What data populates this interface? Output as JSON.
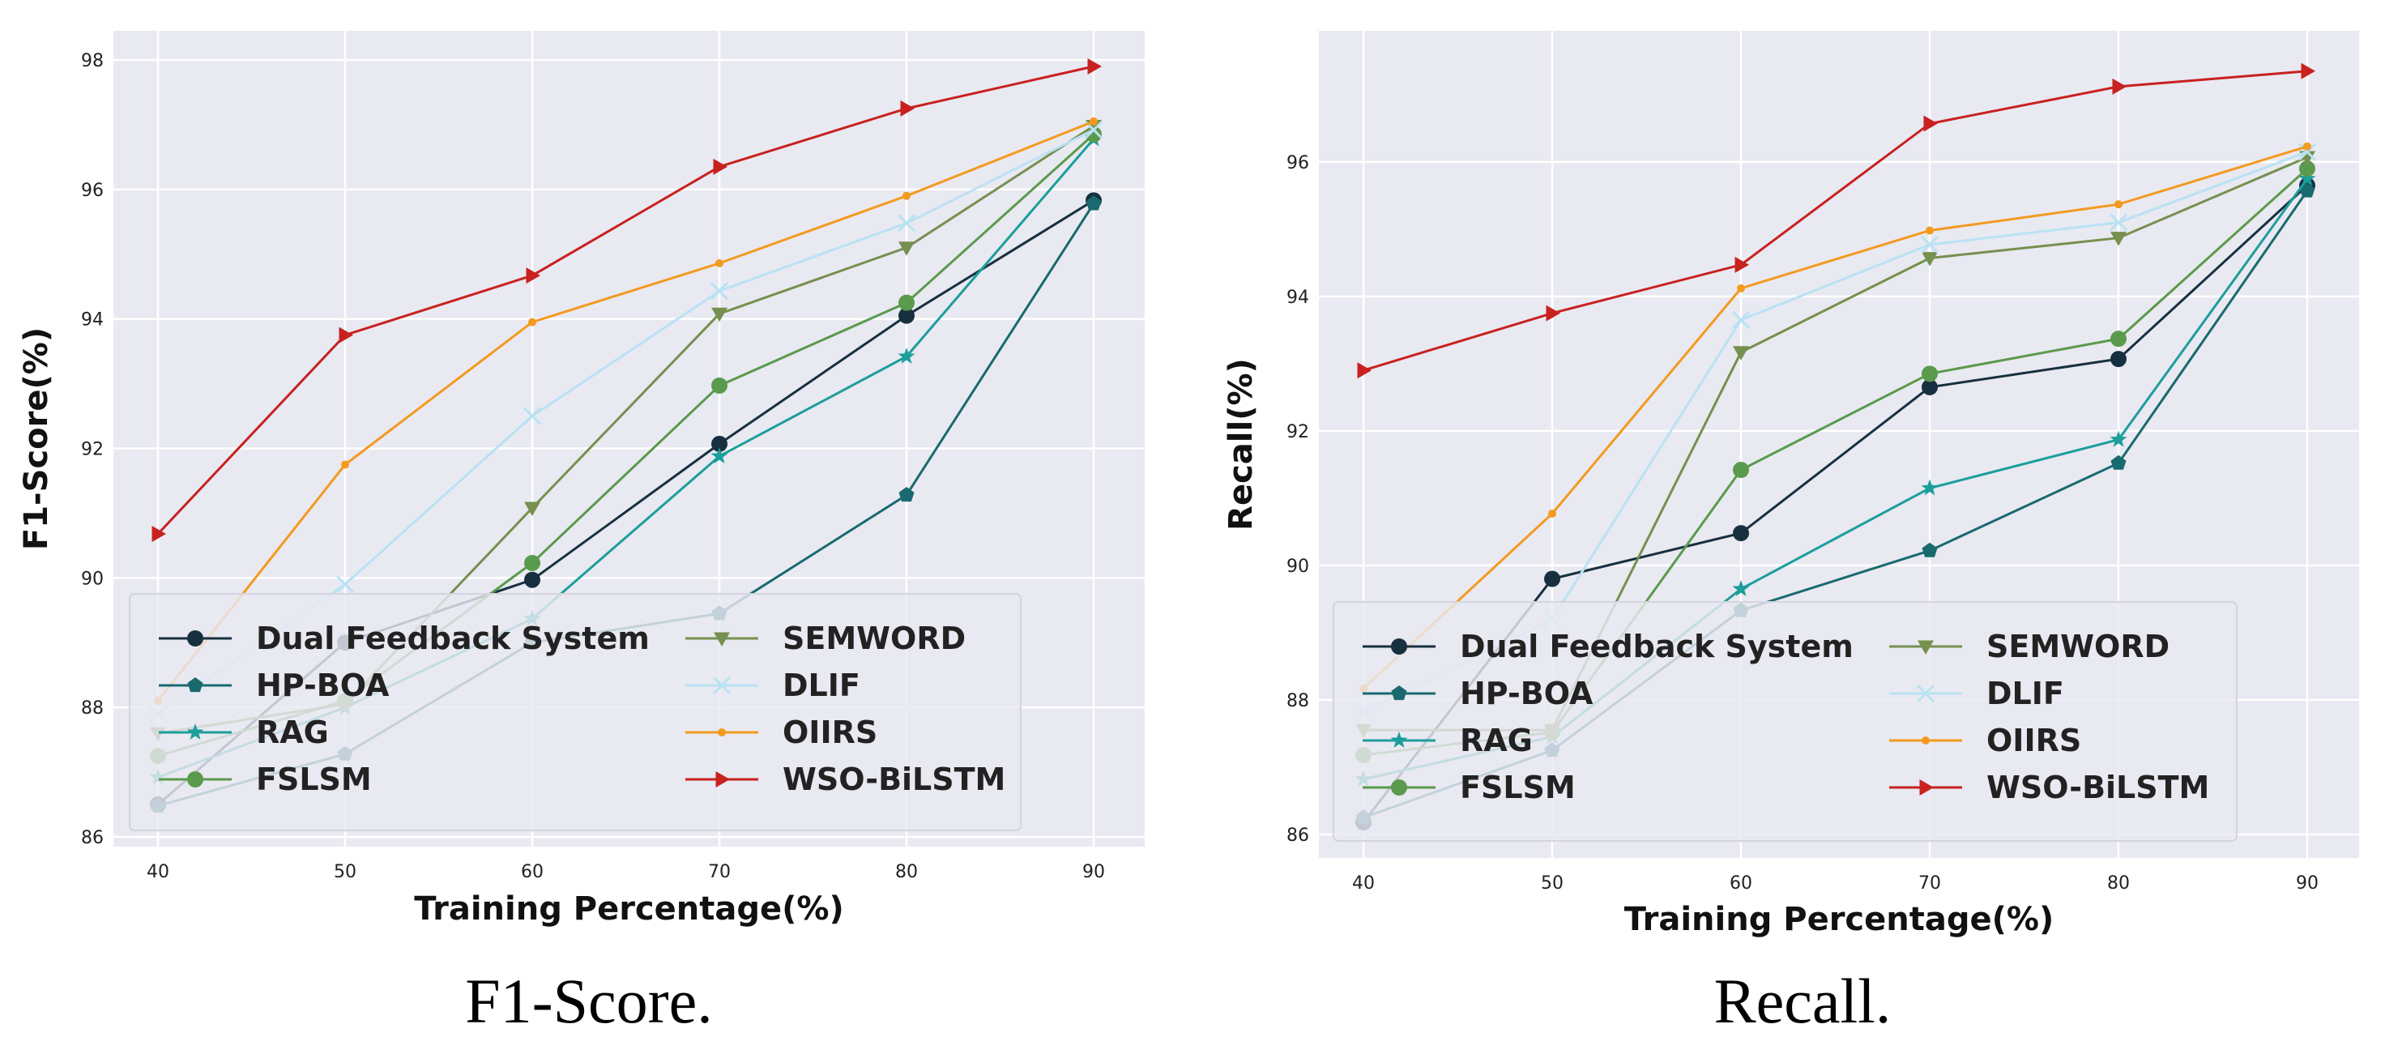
{
  "chart_data": [
    {
      "type": "line",
      "caption": "F1-Score.",
      "xlabel": "Training Percentage(%)",
      "ylabel": "F1-Score(%)",
      "x": [
        40,
        50,
        60,
        70,
        80,
        90
      ],
      "xticks": [
        "40",
        "50",
        "60",
        "70",
        "80",
        "90"
      ],
      "yticks": [
        "86",
        "88",
        "90",
        "92",
        "94",
        "96",
        "98"
      ],
      "ylim": [
        85.85,
        98.45
      ],
      "grid": true,
      "legend_placement": "lower-right",
      "series": [
        {
          "name": "Dual Feedback System",
          "color": "#17303f",
          "marker": "circle",
          "values": [
            86.5,
            89.0,
            89.97,
            92.07,
            94.05,
            95.83
          ]
        },
        {
          "name": "HP-BOA",
          "color": "#186a6e",
          "marker": "pentagon",
          "values": [
            86.48,
            87.28,
            89.0,
            89.45,
            91.28,
            95.78
          ]
        },
        {
          "name": "RAG",
          "color": "#1c9e9b",
          "marker": "star",
          "values": [
            86.92,
            88.0,
            89.37,
            91.88,
            93.42,
            96.78
          ]
        },
        {
          "name": "FSLSM",
          "color": "#5a9a4c",
          "marker": "circle",
          "values": [
            87.25,
            88.1,
            90.23,
            92.97,
            94.25,
            96.85
          ]
        },
        {
          "name": "SEMWORD",
          "color": "#76904f",
          "marker": "triangle-down",
          "values": [
            87.6,
            88.05,
            91.08,
            94.08,
            95.1,
            96.98
          ]
        },
        {
          "name": "DLIF",
          "color": "#b9e2f3",
          "marker": "x",
          "values": [
            87.9,
            89.9,
            92.5,
            94.43,
            95.48,
            96.92
          ]
        },
        {
          "name": "OIIRS",
          "color": "#f39a1f",
          "marker": "dot",
          "values": [
            88.1,
            91.75,
            93.95,
            94.86,
            95.9,
            97.05
          ]
        },
        {
          "name": "WSO-BiLSTM",
          "color": "#c8211f",
          "marker": "triangle-right",
          "values": [
            90.68,
            93.75,
            94.67,
            96.35,
            97.25,
            97.9
          ]
        }
      ]
    },
    {
      "type": "line",
      "caption": "Recall.",
      "xlabel": "Training Percentage(%)",
      "ylabel": "Recall(%)",
      "x": [
        40,
        50,
        60,
        70,
        80,
        90
      ],
      "xticks": [
        "40",
        "50",
        "60",
        "70",
        "80",
        "90"
      ],
      "yticks": [
        "86",
        "88",
        "90",
        "92",
        "94",
        "96"
      ],
      "ylim": [
        85.65,
        97.95
      ],
      "grid": true,
      "legend_placement": "lower-right",
      "series": [
        {
          "name": "Dual Feedback System",
          "color": "#17303f",
          "marker": "circle",
          "values": [
            86.18,
            89.8,
            90.48,
            92.65,
            93.07,
            95.65
          ]
        },
        {
          "name": "HP-BOA",
          "color": "#186a6e",
          "marker": "pentagon",
          "values": [
            86.25,
            87.25,
            89.33,
            90.22,
            91.52,
            95.57
          ]
        },
        {
          "name": "RAG",
          "color": "#1c9e9b",
          "marker": "star",
          "values": [
            86.82,
            87.45,
            89.65,
            91.15,
            91.87,
            95.75
          ]
        },
        {
          "name": "FSLSM",
          "color": "#5a9a4c",
          "marker": "circle",
          "values": [
            87.18,
            87.52,
            91.42,
            92.85,
            93.37,
            95.9
          ]
        },
        {
          "name": "SEMWORD",
          "color": "#76904f",
          "marker": "triangle-down",
          "values": [
            87.55,
            87.55,
            93.17,
            94.57,
            94.87,
            96.07
          ]
        },
        {
          "name": "DLIF",
          "color": "#b9e2f3",
          "marker": "x",
          "values": [
            87.82,
            89.2,
            93.65,
            94.77,
            95.1,
            96.15
          ]
        },
        {
          "name": "OIIRS",
          "color": "#f39a1f",
          "marker": "dot",
          "values": [
            88.17,
            90.77,
            94.12,
            94.98,
            95.37,
            96.23
          ]
        },
        {
          "name": "WSO-BiLSTM",
          "color": "#c8211f",
          "marker": "triangle-right",
          "values": [
            92.9,
            93.75,
            94.47,
            96.57,
            97.12,
            97.35
          ]
        }
      ]
    }
  ]
}
